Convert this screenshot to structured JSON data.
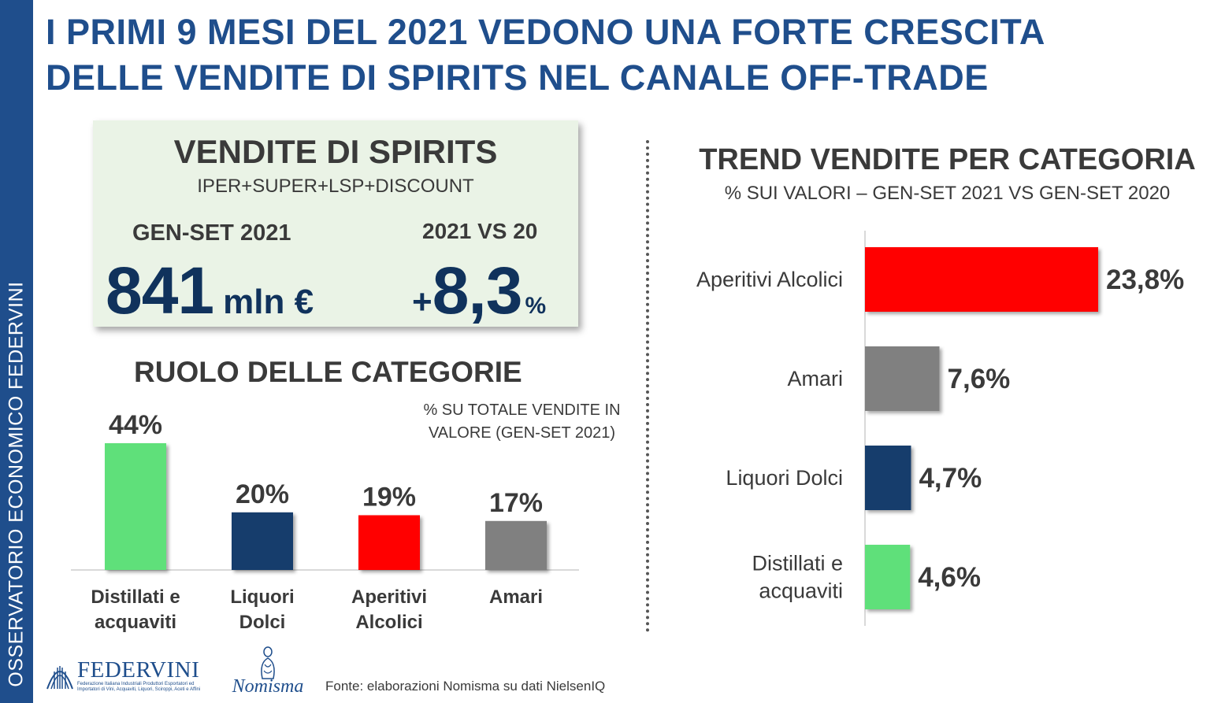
{
  "sidebar": {
    "text": "OSSERVATORIO ECONOMICO  FEDERVINI"
  },
  "title": {
    "line1": "I PRIMI 9 MESI DEL 2021 VEDONO UNA FORTE CRESCITA",
    "line2": "DELLE VENDITE DI SPIRITS NEL CANALE OFF-TRADE"
  },
  "kpi": {
    "title": "VENDITE DI SPIRITS",
    "subtitle": "IPER+SUPER+LSP+DISCOUNT",
    "period": "GEN-SET 2021",
    "compare": "2021 VS 20",
    "value": "841",
    "unit": "mln €",
    "growth_sign": "+",
    "growth": "8,3",
    "growth_unit": "%"
  },
  "colors": {
    "green": "#5fe07a",
    "navy": "#173e6c",
    "red": "#ff0000",
    "grey": "#808080",
    "brand_blue": "#1f4e8c"
  },
  "chart_data": [
    {
      "type": "bar",
      "title": "RUOLO DELLE CATEGORIE",
      "subtitle": "% SU TOTALE VENDITE IN VALORE (GEN-SET 2021)",
      "categories": [
        [
          "Distillati e",
          "acquaviti"
        ],
        [
          "Liquori",
          "Dolci"
        ],
        [
          "Aperitivi",
          "Alcolici"
        ],
        [
          "Amari"
        ]
      ],
      "values": [
        44,
        20,
        19,
        17
      ],
      "labels": [
        "44%",
        "20%",
        "19%",
        "17%"
      ],
      "colors": [
        "#5fe07a",
        "#173e6c",
        "#ff0000",
        "#808080"
      ],
      "unit": "%",
      "ylim": [
        0,
        44
      ]
    },
    {
      "type": "bar",
      "orientation": "horizontal",
      "title": "TREND VENDITE PER CATEGORIA",
      "subtitle": "% SUI VALORI – GEN-SET 2021 VS GEN-SET 2020",
      "categories": [
        [
          "Aperitivi Alcolici"
        ],
        [
          "Amari"
        ],
        [
          "Liquori Dolci"
        ],
        [
          "Distillati e",
          "acquaviti"
        ]
      ],
      "values": [
        23.8,
        7.6,
        4.7,
        4.6
      ],
      "labels": [
        "23,8%",
        "7,6%",
        "4,7%",
        "4,6%"
      ],
      "colors": [
        "#ff0000",
        "#808080",
        "#173e6c",
        "#5fe07a"
      ],
      "unit": "%",
      "xlim": [
        0,
        23.8
      ]
    }
  ],
  "footer": {
    "federvini_name": "FEDERVINI",
    "federvini_desc": "Federazione Italiana Industriali Produttori Esportatori ed Importatori di Vini, Acquaviti, Liquori, Sciroppi, Aceti e Affini",
    "nomisma_name": "Nomisma",
    "source": "Fonte: elaborazioni Nomisma su dati NielsenIQ"
  }
}
